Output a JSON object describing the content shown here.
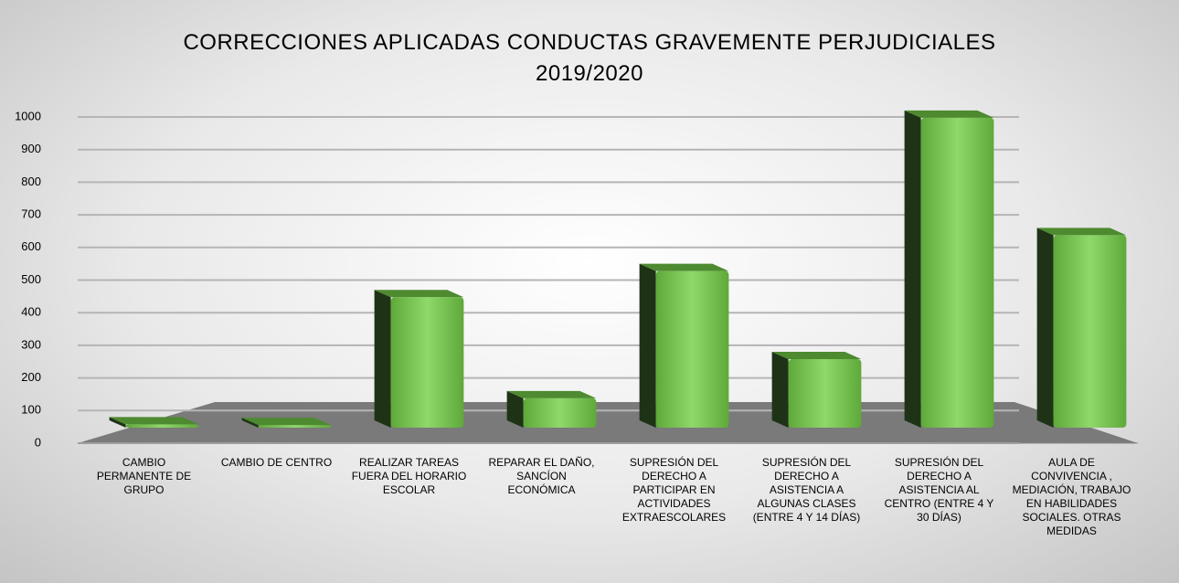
{
  "chart_data": {
    "type": "bar",
    "title": "CORRECCIONES APLICADAS CONDUCTAS GRAVEMENTE PERJUDICIALES\n2019/2020",
    "categories": [
      "CAMBIO PERMANENTE DE GRUPO",
      "CAMBIO DE CENTRO",
      "REALIZAR TAREAS FUERA DEL HORARIO ESCOLAR",
      "REPARAR EL DAÑO, SANCÍON ECONÓMICA",
      "SUPRESIÓN DEL DERECHO A PARTICIPAR EN ACTIVIDADES EXTRAESCOLARES",
      "SUPRESIÓN DEL DERECHO A ASISTENCIA A ALGUNAS CLASES (ENTRE 4 Y 14 DÍAS)",
      "SUPRESIÓN DEL DERECHO A ASISTENCIA AL CENTRO (ENTRE 4 Y 30 DÍAS)",
      "AULA DE CONVIVENCIA , MEDIACIÓN, TRABAJO EN HABILIDADES SOCIALES. OTRAS MEDIDAS"
    ],
    "values": [
      10,
      8,
      400,
      90,
      480,
      210,
      950,
      590
    ],
    "color": "#72c04a",
    "ylim": [
      0,
      1000
    ],
    "yticks": [
      0,
      100,
      200,
      300,
      400,
      500,
      600,
      700,
      800,
      900,
      1000
    ],
    "grid": true
  }
}
